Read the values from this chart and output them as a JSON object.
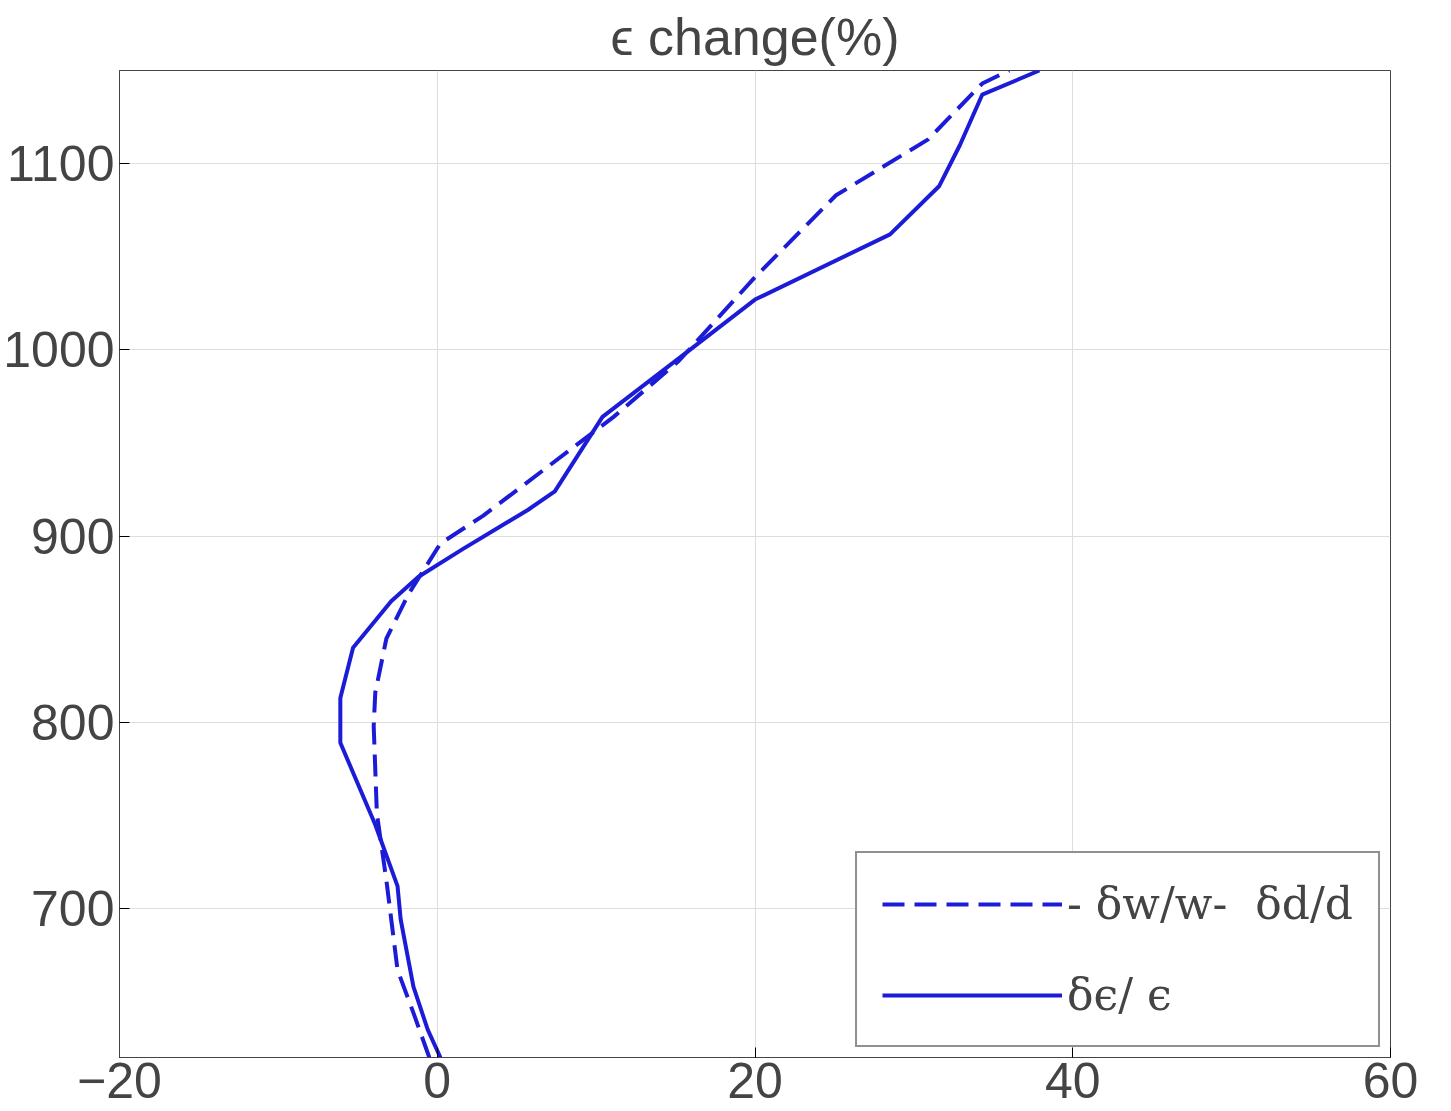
{
  "chart_data": {
    "type": "line",
    "title": "ϵ change(%)",
    "xlim": [
      -20,
      60
    ],
    "ylim": [
      620,
      1150
    ],
    "xticks": [
      -20,
      0,
      20,
      40,
      60
    ],
    "yticks": [
      700,
      800,
      900,
      1000,
      1100
    ],
    "grid": true,
    "legend": "bottom right",
    "marker": "none",
    "series": [
      {
        "name": "- δw/w-  δd/d",
        "color": "#1c1cd8",
        "line_style": "dashed",
        "x": [
          -0.5,
          -1.5,
          -2.5,
          -3.2,
          -3.8,
          -4.0,
          -3.9,
          -3.2,
          -1.8,
          0.2,
          2.9,
          11.1,
          15.2,
          20,
          25.1,
          30.9,
          34.3,
          36
        ],
        "values": [
          620,
          644,
          667,
          715,
          751,
          798,
          816,
          845,
          869,
          896,
          911,
          964,
          994,
          1039,
          1083,
          1113,
          1143,
          1150
        ]
      },
      {
        "name": "δϵ/ ϵ",
        "color": "#1c1cd8",
        "line_style": "solid",
        "x": [
          0.2,
          -0.6,
          -1.5,
          -2.3,
          -2.5,
          -3.9,
          -6.1,
          -6.1,
          -5.3,
          -2.9,
          -1.2,
          1.6,
          5.7,
          7.4,
          10.4,
          15.9,
          20,
          28.5,
          31.6,
          32.9,
          34.3,
          37.9
        ],
        "values": [
          620,
          635,
          658,
          694,
          712,
          745,
          789,
          813,
          840,
          865,
          878,
          893,
          914,
          924,
          964,
          1000,
          1027,
          1062,
          1088,
          1110,
          1137,
          1150
        ]
      }
    ]
  }
}
